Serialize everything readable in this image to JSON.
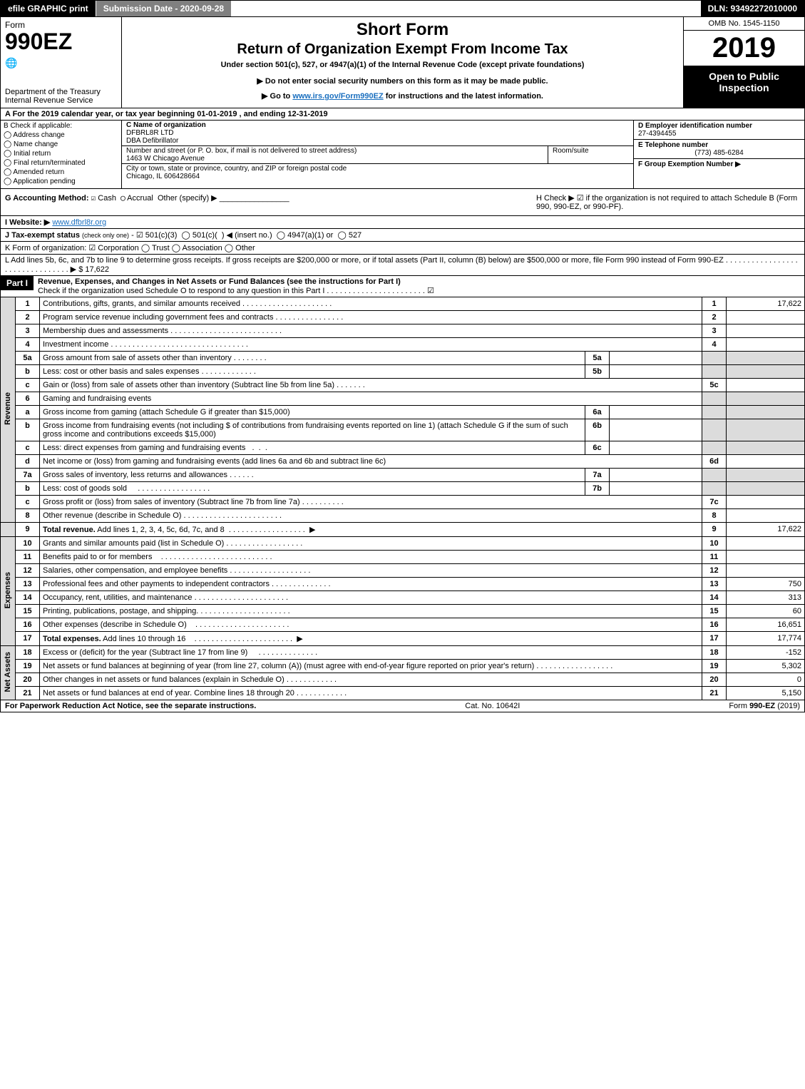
{
  "topbar": {
    "efile": "efile GRAPHIC print",
    "submission": "Submission Date - 2020-09-28",
    "dln": "DLN: 93492272010000"
  },
  "header": {
    "form_label": "Form",
    "form_number": "990EZ",
    "dept": "Department of the Treasury",
    "irs": "Internal Revenue Service",
    "short_form": "Short Form",
    "return_title": "Return of Organization Exempt From Income Tax",
    "under_section": "Under section 501(c), 527, or 4947(a)(1) of the Internal Revenue Code (except private foundations)",
    "no_ssn": "▶ Do not enter social security numbers on this form as it may be made public.",
    "goto_prefix": "▶ Go to ",
    "goto_link": "www.irs.gov/Form990EZ",
    "goto_suffix": " for instructions and the latest information.",
    "omb": "OMB No. 1545-1150",
    "year": "2019",
    "open": "Open to Public Inspection"
  },
  "line_a": "A For the 2019 calendar year, or tax year beginning 01-01-2019 , and ending 12-31-2019",
  "section_b": {
    "title": "B Check if applicable:",
    "items": [
      "Address change",
      "Name change",
      "Initial return",
      "Final return/terminated",
      "Amended return",
      "Application pending"
    ]
  },
  "section_c": {
    "name_label": "C Name of organization",
    "name": "DFBRL8R LTD",
    "dba": "DBA Defibrillator",
    "street_label": "Number and street (or P. O. box, if mail is not delivered to street address)",
    "street": "1463 W Chicago Avenue",
    "room_label": "Room/suite",
    "city_label": "City or town, state or province, country, and ZIP or foreign postal code",
    "city": "Chicago, IL  606428664"
  },
  "section_d": {
    "label": "D Employer identification number",
    "value": "27-4394455"
  },
  "section_e": {
    "label": "E Telephone number",
    "value": "(773) 485-6284"
  },
  "section_f": {
    "label": "F Group Exemption Number  ▶"
  },
  "section_g": {
    "label": "G Accounting Method:",
    "cash": "Cash",
    "accrual": "Accrual",
    "other": "Other (specify) ▶"
  },
  "section_h": {
    "text": "H  Check ▶ ☑ if the organization is not required to attach Schedule B (Form 990, 990-EZ, or 990-PF)."
  },
  "section_i": {
    "label": "I Website: ▶",
    "value": "www.dfbrl8r.org"
  },
  "section_j": {
    "label": "J Tax-exempt status (check only one) - ☑ 501(c)(3)  ◯ 501(c)(  ) ◀ (insert no.)  ◯ 4947(a)(1) or  ◯ 527"
  },
  "section_k": {
    "label": "K Form of organization:  ☑ Corporation   ◯ Trust   ◯ Association   ◯ Other"
  },
  "section_l": {
    "text": "L Add lines 5b, 6c, and 7b to line 9 to determine gross receipts. If gross receipts are $200,000 or more, or if total assets (Part II, column (B) below) are $500,000 or more, file Form 990 instead of Form 990-EZ . . . . . . . . . . . . . . . . . . . . . . . . . . . . . . . . ▶ $ 17,622"
  },
  "part1": {
    "label": "Part I",
    "title": "Revenue, Expenses, and Changes in Net Assets or Fund Balances (see the instructions for Part I)",
    "check_o": "Check if the organization used Schedule O to respond to any question in this Part I . . . . . . . . . . . . . . . . . . . . . . .",
    "checked": "☑"
  },
  "sections": {
    "revenue": "Revenue",
    "expenses": "Expenses",
    "netassets": "Net Assets"
  },
  "lines": {
    "l1": {
      "num": "1",
      "desc": "Contributions, gifts, grants, and similar amounts received",
      "ln": "1",
      "val": "17,622"
    },
    "l2": {
      "num": "2",
      "desc": "Program service revenue including government fees and contracts",
      "ln": "2",
      "val": ""
    },
    "l3": {
      "num": "3",
      "desc": "Membership dues and assessments",
      "ln": "3",
      "val": ""
    },
    "l4": {
      "num": "4",
      "desc": "Investment income",
      "ln": "4",
      "val": ""
    },
    "l5a": {
      "num": "5a",
      "desc": "Gross amount from sale of assets other than inventory",
      "mid": "5a"
    },
    "l5b": {
      "num": "b",
      "desc": "Less: cost or other basis and sales expenses",
      "mid": "5b"
    },
    "l5c": {
      "num": "c",
      "desc": "Gain or (loss) from sale of assets other than inventory (Subtract line 5b from line 5a)",
      "ln": "5c",
      "val": ""
    },
    "l6": {
      "num": "6",
      "desc": "Gaming and fundraising events"
    },
    "l6a": {
      "num": "a",
      "desc": "Gross income from gaming (attach Schedule G if greater than $15,000)",
      "mid": "6a"
    },
    "l6b": {
      "num": "b",
      "desc": "Gross income from fundraising events (not including $                        of contributions from fundraising events reported on line 1) (attach Schedule G if the sum of such gross income and contributions exceeds $15,000)",
      "mid": "6b"
    },
    "l6c": {
      "num": "c",
      "desc": "Less: direct expenses from gaming and fundraising events",
      "mid": "6c"
    },
    "l6d": {
      "num": "d",
      "desc": "Net income or (loss) from gaming and fundraising events (add lines 6a and 6b and subtract line 6c)",
      "ln": "6d",
      "val": ""
    },
    "l7a": {
      "num": "7a",
      "desc": "Gross sales of inventory, less returns and allowances",
      "mid": "7a"
    },
    "l7b": {
      "num": "b",
      "desc": "Less: cost of goods sold",
      "mid": "7b"
    },
    "l7c": {
      "num": "c",
      "desc": "Gross profit or (loss) from sales of inventory (Subtract line 7b from line 7a)",
      "ln": "7c",
      "val": ""
    },
    "l8": {
      "num": "8",
      "desc": "Other revenue (describe in Schedule O)",
      "ln": "8",
      "val": ""
    },
    "l9": {
      "num": "9",
      "desc": "Total revenue. Add lines 1, 2, 3, 4, 5c, 6d, 7c, and 8   . . . . . . . . . . . . . . . . . .  ▶",
      "ln": "9",
      "val": "17,622",
      "bold": true
    },
    "l10": {
      "num": "10",
      "desc": "Grants and similar amounts paid (list in Schedule O)",
      "ln": "10",
      "val": ""
    },
    "l11": {
      "num": "11",
      "desc": "Benefits paid to or for members",
      "ln": "11",
      "val": ""
    },
    "l12": {
      "num": "12",
      "desc": "Salaries, other compensation, and employee benefits",
      "ln": "12",
      "val": ""
    },
    "l13": {
      "num": "13",
      "desc": "Professional fees and other payments to independent contractors",
      "ln": "13",
      "val": "750"
    },
    "l14": {
      "num": "14",
      "desc": "Occupancy, rent, utilities, and maintenance",
      "ln": "14",
      "val": "313"
    },
    "l15": {
      "num": "15",
      "desc": "Printing, publications, postage, and shipping.",
      "ln": "15",
      "val": "60"
    },
    "l16": {
      "num": "16",
      "desc": "Other expenses (describe in Schedule O)",
      "ln": "16",
      "val": "16,651"
    },
    "l17": {
      "num": "17",
      "desc": "Total expenses. Add lines 10 through 16    . . . . . . . . . . . . . . . . . . . . . . .  ▶",
      "ln": "17",
      "val": "17,774",
      "bold": true
    },
    "l18": {
      "num": "18",
      "desc": "Excess or (deficit) for the year (Subtract line 17 from line 9)",
      "ln": "18",
      "val": "-152"
    },
    "l19": {
      "num": "19",
      "desc": "Net assets or fund balances at beginning of year (from line 27, column (A)) (must agree with end-of-year figure reported on prior year's return)",
      "ln": "19",
      "val": "5,302"
    },
    "l20": {
      "num": "20",
      "desc": "Other changes in net assets or fund balances (explain in Schedule O)",
      "ln": "20",
      "val": "0"
    },
    "l21": {
      "num": "21",
      "desc": "Net assets or fund balances at end of year. Combine lines 18 through 20",
      "ln": "21",
      "val": "5,150"
    }
  },
  "footer": {
    "left": "For Paperwork Reduction Act Notice, see the separate instructions.",
    "mid": "Cat. No. 10642I",
    "right_prefix": "Form ",
    "right_form": "990-EZ",
    "right_suffix": " (2019)"
  },
  "colors": {
    "black": "#000000",
    "shade": "#dcdcdc",
    "link": "#1a6fbf"
  }
}
